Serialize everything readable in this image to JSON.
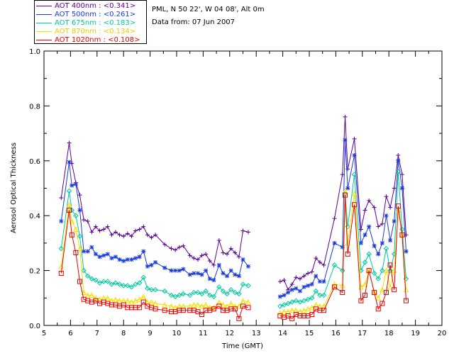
{
  "info": {
    "site": "PML, N 50 22', W 04 08', Alt 0m",
    "date": "Data from: 07 Jun 2007"
  },
  "chart_data": {
    "type": "scatter",
    "title": "",
    "xlabel": "Time (GMT)",
    "ylabel": "Aerosol Optical Thickness",
    "xlim": [
      5,
      20
    ],
    "ylim": [
      0.0,
      1.0
    ],
    "xticks": [
      "5",
      "6",
      "7",
      "8",
      "9",
      "10",
      "11",
      "12",
      "13",
      "14",
      "15",
      "16",
      "17",
      "18",
      "19",
      "20"
    ],
    "yticks": [
      "0.0",
      "0.2",
      "0.4",
      "0.6",
      "0.8",
      "1.0"
    ],
    "legend_position": "top-left",
    "series": [
      {
        "name": "AOT  400nm : <0.341>",
        "color": "#5a0090",
        "marker": "plus",
        "x": [
          5.65,
          5.95,
          6.05,
          6.2,
          6.35,
          6.5,
          6.65,
          6.8,
          6.95,
          7.1,
          7.25,
          7.4,
          7.55,
          7.7,
          7.85,
          8.0,
          8.15,
          8.3,
          8.45,
          8.6,
          8.75,
          8.9,
          9.05,
          9.2,
          9.55,
          9.8,
          9.95,
          10.1,
          10.25,
          10.5,
          10.65,
          10.8,
          10.95,
          11.1,
          11.25,
          11.4,
          11.6,
          11.75,
          11.9,
          12.05,
          12.2,
          12.35,
          12.5,
          12.7,
          13.9,
          14.05,
          14.2,
          14.35,
          14.5,
          14.65,
          14.8,
          14.95,
          15.1,
          15.25,
          15.4,
          15.55,
          15.95,
          16.25,
          16.35,
          16.45,
          16.7,
          16.95,
          17.1,
          17.25,
          17.45,
          17.6,
          17.75,
          17.9,
          18.05,
          18.2,
          18.35,
          18.5,
          18.65
        ],
        "y": [
          0.465,
          0.665,
          0.59,
          0.52,
          0.475,
          0.385,
          0.38,
          0.34,
          0.36,
          0.345,
          0.35,
          0.36,
          0.33,
          0.34,
          0.33,
          0.325,
          0.335,
          0.325,
          0.345,
          0.35,
          0.36,
          0.33,
          0.32,
          0.33,
          0.295,
          0.28,
          0.275,
          0.285,
          0.29,
          0.255,
          0.245,
          0.24,
          0.255,
          0.26,
          0.235,
          0.22,
          0.31,
          0.265,
          0.26,
          0.28,
          0.265,
          0.25,
          0.345,
          0.34,
          0.16,
          0.165,
          0.13,
          0.15,
          0.175,
          0.17,
          0.18,
          0.19,
          0.195,
          0.245,
          0.23,
          0.22,
          0.39,
          0.55,
          0.76,
          0.57,
          0.68,
          0.35,
          0.42,
          0.455,
          0.43,
          0.36,
          0.37,
          0.47,
          0.43,
          0.5,
          0.62,
          0.55,
          0.33
        ]
      },
      {
        "name": "AOT  500nm : <0.261>",
        "color": "#1a3adb",
        "marker": "star",
        "x": [
          5.65,
          5.95,
          6.05,
          6.2,
          6.35,
          6.5,
          6.65,
          6.8,
          6.95,
          7.1,
          7.25,
          7.4,
          7.55,
          7.7,
          7.85,
          8.0,
          8.15,
          8.3,
          8.45,
          8.6,
          8.75,
          8.9,
          9.05,
          9.2,
          9.55,
          9.8,
          9.95,
          10.1,
          10.25,
          10.5,
          10.65,
          10.8,
          10.95,
          11.1,
          11.25,
          11.4,
          11.6,
          11.75,
          11.9,
          12.05,
          12.2,
          12.35,
          12.5,
          12.7,
          13.9,
          14.05,
          14.2,
          14.35,
          14.5,
          14.65,
          14.8,
          14.95,
          15.1,
          15.25,
          15.4,
          15.55,
          15.95,
          16.25,
          16.35,
          16.45,
          16.7,
          16.95,
          17.1,
          17.25,
          17.45,
          17.6,
          17.75,
          17.9,
          18.05,
          18.2,
          18.35,
          18.5,
          18.65
        ],
        "y": [
          0.38,
          0.595,
          0.51,
          0.515,
          0.42,
          0.27,
          0.27,
          0.285,
          0.26,
          0.25,
          0.255,
          0.26,
          0.245,
          0.25,
          0.24,
          0.235,
          0.24,
          0.24,
          0.245,
          0.25,
          0.27,
          0.215,
          0.22,
          0.23,
          0.21,
          0.2,
          0.2,
          0.2,
          0.205,
          0.185,
          0.19,
          0.19,
          0.185,
          0.2,
          0.17,
          0.165,
          0.22,
          0.19,
          0.18,
          0.2,
          0.185,
          0.18,
          0.24,
          0.215,
          0.105,
          0.11,
          0.12,
          0.13,
          0.135,
          0.125,
          0.14,
          0.145,
          0.15,
          0.18,
          0.16,
          0.16,
          0.3,
          0.285,
          0.675,
          0.5,
          0.62,
          0.3,
          0.33,
          0.36,
          0.29,
          0.26,
          0.3,
          0.4,
          0.31,
          0.38,
          0.6,
          0.5,
          0.27
        ]
      },
      {
        "name": "AOT  675nm : <0.183>",
        "color": "#00c8a0",
        "marker": "diamond",
        "x": [
          5.65,
          5.95,
          6.05,
          6.2,
          6.35,
          6.5,
          6.65,
          6.8,
          6.95,
          7.1,
          7.25,
          7.4,
          7.55,
          7.7,
          7.85,
          8.0,
          8.15,
          8.3,
          8.45,
          8.6,
          8.75,
          8.9,
          9.05,
          9.2,
          9.55,
          9.8,
          9.95,
          10.1,
          10.25,
          10.5,
          10.65,
          10.8,
          10.95,
          11.1,
          11.25,
          11.4,
          11.6,
          11.75,
          11.9,
          12.05,
          12.2,
          12.35,
          12.5,
          12.7,
          13.9,
          14.05,
          14.2,
          14.35,
          14.5,
          14.65,
          14.8,
          14.95,
          15.1,
          15.25,
          15.4,
          15.55,
          15.95,
          16.25,
          16.35,
          16.45,
          16.7,
          16.95,
          17.1,
          17.25,
          17.45,
          17.6,
          17.75,
          17.9,
          18.05,
          18.2,
          18.35,
          18.5,
          18.65
        ],
        "y": [
          0.28,
          0.49,
          0.42,
          0.4,
          0.325,
          0.2,
          0.18,
          0.17,
          0.165,
          0.155,
          0.16,
          0.16,
          0.15,
          0.155,
          0.15,
          0.145,
          0.145,
          0.14,
          0.15,
          0.155,
          0.175,
          0.135,
          0.13,
          0.13,
          0.125,
          0.11,
          0.105,
          0.11,
          0.115,
          0.11,
          0.12,
          0.12,
          0.115,
          0.125,
          0.11,
          0.105,
          0.14,
          0.125,
          0.115,
          0.13,
          0.12,
          0.115,
          0.15,
          0.145,
          0.07,
          0.075,
          0.08,
          0.085,
          0.09,
          0.085,
          0.09,
          0.095,
          0.1,
          0.125,
          0.11,
          0.11,
          0.22,
          0.2,
          0.48,
          0.36,
          0.55,
          0.2,
          0.23,
          0.26,
          0.19,
          0.17,
          0.2,
          0.28,
          0.2,
          0.26,
          0.56,
          0.35,
          0.17
        ]
      },
      {
        "name": "AOT  870nm : <0.134>",
        "color": "#f0e000",
        "marker": "triangle",
        "x": [
          5.65,
          5.95,
          6.05,
          6.2,
          6.35,
          6.5,
          6.65,
          6.8,
          6.95,
          7.1,
          7.25,
          7.4,
          7.55,
          7.7,
          7.85,
          8.0,
          8.15,
          8.3,
          8.45,
          8.6,
          8.75,
          8.9,
          9.05,
          9.2,
          9.55,
          9.8,
          9.95,
          10.1,
          10.25,
          10.5,
          10.65,
          10.8,
          10.95,
          11.1,
          11.25,
          11.4,
          11.6,
          11.75,
          11.9,
          12.05,
          12.2,
          12.35,
          12.5,
          12.7,
          13.9,
          14.05,
          14.2,
          14.35,
          14.5,
          14.65,
          14.8,
          14.95,
          15.1,
          15.25,
          15.4,
          15.55,
          15.95,
          16.25,
          16.35,
          16.45,
          16.7,
          16.95,
          17.1,
          17.25,
          17.45,
          17.6,
          17.75,
          17.9,
          18.05,
          18.2,
          18.35,
          18.5,
          18.65
        ],
        "y": [
          0.215,
          0.44,
          0.38,
          0.35,
          0.28,
          0.12,
          0.11,
          0.11,
          0.1,
          0.095,
          0.1,
          0.1,
          0.09,
          0.095,
          0.09,
          0.09,
          0.09,
          0.085,
          0.09,
          0.095,
          0.105,
          0.085,
          0.085,
          0.08,
          0.075,
          0.07,
          0.065,
          0.07,
          0.07,
          0.07,
          0.075,
          0.075,
          0.07,
          0.075,
          0.065,
          0.065,
          0.085,
          0.075,
          0.07,
          0.08,
          0.07,
          0.07,
          0.09,
          0.085,
          0.045,
          0.05,
          0.05,
          0.055,
          0.055,
          0.05,
          0.055,
          0.06,
          0.065,
          0.075,
          0.07,
          0.07,
          0.15,
          0.145,
          0.49,
          0.3,
          0.48,
          0.14,
          0.15,
          0.2,
          0.12,
          0.1,
          0.13,
          0.2,
          0.14,
          0.2,
          0.42,
          0.33,
          0.13
        ]
      },
      {
        "name": "AOT 1020nm : <0.108>",
        "color": "#e80000",
        "marker": "square",
        "x": [
          5.65,
          5.95,
          6.05,
          6.2,
          6.35,
          6.5,
          6.65,
          6.8,
          6.95,
          7.1,
          7.25,
          7.4,
          7.55,
          7.7,
          7.85,
          8.0,
          8.15,
          8.3,
          8.45,
          8.6,
          8.75,
          8.9,
          9.05,
          9.2,
          9.55,
          9.8,
          9.95,
          10.1,
          10.25,
          10.5,
          10.65,
          10.8,
          10.95,
          11.1,
          11.25,
          11.4,
          11.6,
          11.75,
          11.9,
          12.05,
          12.2,
          12.35,
          12.5,
          12.7,
          13.9,
          14.05,
          14.2,
          14.35,
          14.5,
          14.65,
          14.8,
          14.95,
          15.1,
          15.25,
          15.4,
          15.55,
          15.95,
          16.25,
          16.35,
          16.45,
          16.7,
          16.95,
          17.1,
          17.25,
          17.45,
          17.6,
          17.75,
          17.9,
          18.05,
          18.2,
          18.35,
          18.5,
          18.65
        ],
        "y": [
          0.19,
          0.42,
          0.33,
          0.265,
          0.16,
          0.095,
          0.09,
          0.085,
          0.09,
          0.08,
          0.085,
          0.08,
          0.075,
          0.075,
          0.07,
          0.075,
          0.065,
          0.065,
          0.065,
          0.065,
          0.085,
          0.07,
          0.065,
          0.06,
          0.055,
          0.05,
          0.05,
          0.055,
          0.055,
          0.055,
          0.055,
          0.05,
          0.04,
          0.055,
          0.055,
          0.06,
          0.07,
          0.055,
          0.055,
          0.06,
          0.06,
          0.025,
          0.07,
          0.065,
          0.035,
          0.03,
          0.035,
          0.025,
          0.04,
          0.035,
          0.035,
          0.035,
          0.04,
          0.06,
          0.055,
          0.055,
          0.14,
          0.12,
          0.475,
          0.26,
          0.44,
          0.09,
          0.11,
          0.2,
          0.12,
          0.06,
          0.08,
          0.12,
          0.22,
          0.13,
          0.435,
          0.33,
          0.09
        ]
      }
    ]
  }
}
